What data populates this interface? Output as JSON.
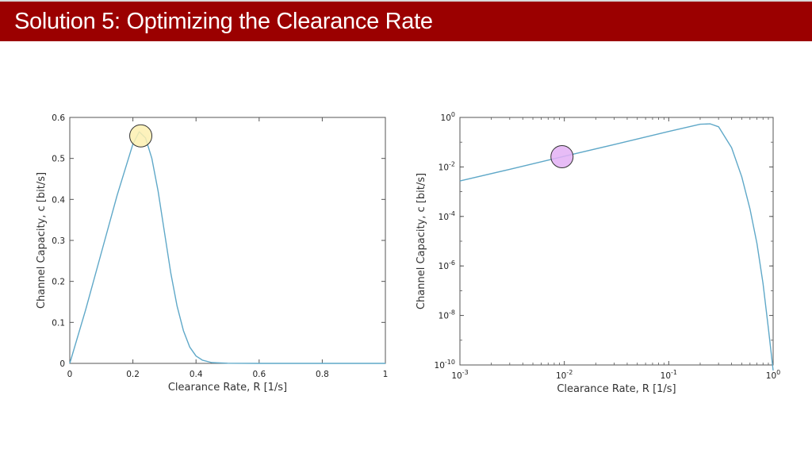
{
  "slide": {
    "title": "Solution 5: Optimizing the Clearance Rate",
    "accent_color": "#9b0000"
  },
  "chart_data": [
    {
      "type": "line",
      "xlabel": "Clearance Rate, R [1/s]",
      "ylabel": "Channel Capacity, c [bit/s]",
      "xlim": [
        0,
        1
      ],
      "ylim": [
        0,
        0.6
      ],
      "xscale": "linear",
      "yscale": "linear",
      "x_ticks": [
        "0",
        "0.2",
        "0.4",
        "0.6",
        "0.8",
        "1"
      ],
      "y_ticks": [
        "0",
        "0.1",
        "0.2",
        "0.3",
        "0.4",
        "0.5",
        "0.6"
      ],
      "grid": false,
      "line_color": "#5fa8c8",
      "series": [
        {
          "x": [
            0,
            0.05,
            0.1,
            0.15,
            0.2,
            0.22,
            0.24,
            0.26,
            0.28,
            0.3,
            0.32,
            0.34,
            0.36,
            0.38,
            0.4,
            0.42,
            0.45,
            0.5,
            0.6,
            0.8,
            1.0
          ],
          "y": [
            0,
            0.13,
            0.27,
            0.41,
            0.535,
            0.565,
            0.55,
            0.5,
            0.42,
            0.32,
            0.22,
            0.14,
            0.08,
            0.04,
            0.018,
            0.008,
            0.002,
            0.0003,
            0,
            0,
            0
          ]
        }
      ],
      "annotations": [
        {
          "type": "circle-marker",
          "x": 0.225,
          "y": 0.555,
          "color": "#fdf0b0"
        }
      ]
    },
    {
      "type": "line",
      "xlabel": "Clearance Rate, R [1/s]",
      "ylabel": "Channel Capacity, c [bit/s]",
      "xlim": [
        0.001,
        1
      ],
      "ylim": [
        1e-10,
        1
      ],
      "xscale": "log",
      "yscale": "log",
      "x_ticks": [
        {
          "base": "10",
          "exp": "-3"
        },
        {
          "base": "10",
          "exp": "-2"
        },
        {
          "base": "10",
          "exp": "-1"
        },
        {
          "base": "10",
          "exp": "0"
        }
      ],
      "y_ticks": [
        {
          "base": "10",
          "exp": "-10"
        },
        {
          "base": "10",
          "exp": "-8"
        },
        {
          "base": "10",
          "exp": "-6"
        },
        {
          "base": "10",
          "exp": "-4"
        },
        {
          "base": "10",
          "exp": "-2"
        },
        {
          "base": "10",
          "exp": "0"
        }
      ],
      "grid": false,
      "line_color": "#5fa8c8",
      "series": [
        {
          "x": [
            0.001,
            0.003,
            0.01,
            0.03,
            0.1,
            0.2,
            0.25,
            0.3,
            0.4,
            0.5,
            0.6,
            0.7,
            0.8,
            0.9,
            1.0
          ],
          "y": [
            0.0027,
            0.008,
            0.027,
            0.08,
            0.27,
            0.53,
            0.55,
            0.42,
            0.06,
            0.004,
            0.0002,
            8e-06,
            2e-07,
            3e-09,
            6e-11
          ]
        }
      ],
      "annotations": [
        {
          "type": "circle-marker",
          "x": 0.0095,
          "y": 0.026,
          "color": "#e3b0f5"
        }
      ]
    }
  ]
}
